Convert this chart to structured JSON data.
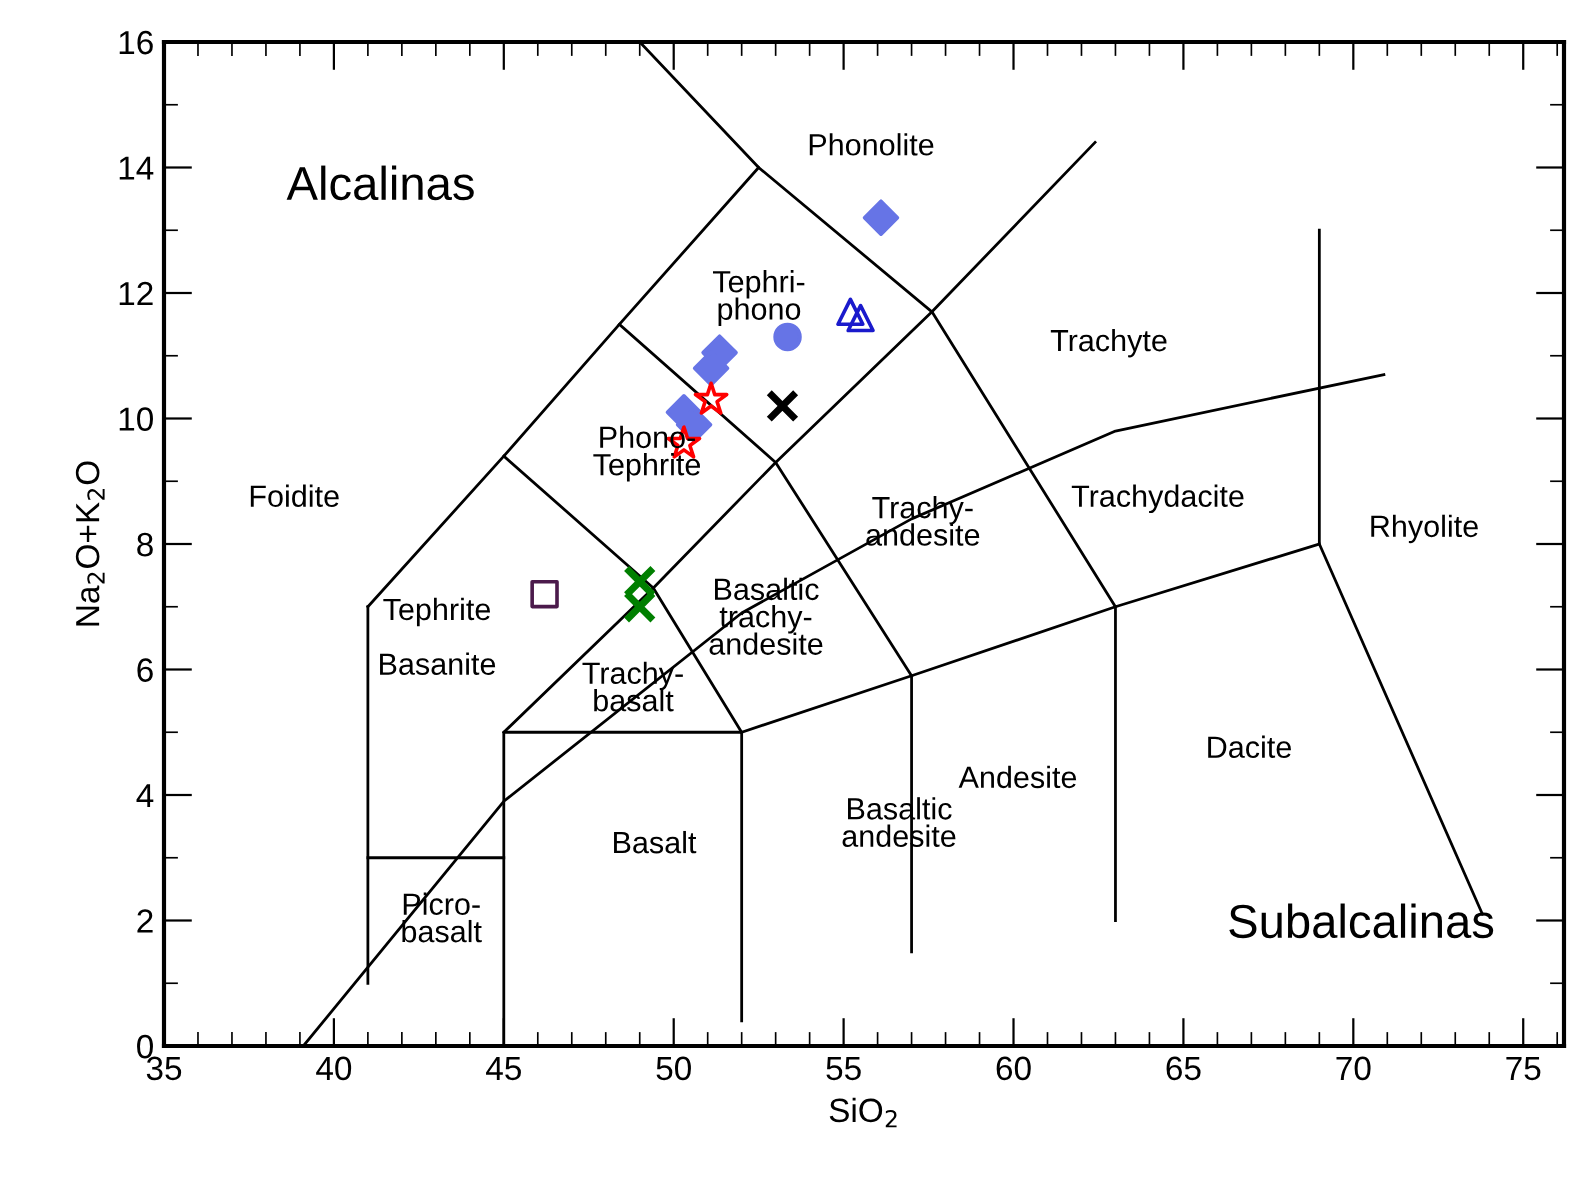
{
  "chart_data": {
    "type": "scatter",
    "xlabel": "SiO$_{2}$",
    "ylabel": "Na$_{2}$O+K$_{2}$O",
    "xlim": [
      35,
      76.2
    ],
    "ylim": [
      0,
      16
    ],
    "xticks": [
      35,
      40,
      45,
      50,
      55,
      60,
      65,
      70,
      75
    ],
    "yticks": [
      0,
      2,
      4,
      6,
      8,
      10,
      12,
      14,
      16
    ],
    "grid": false,
    "legend": false,
    "series": [
      {
        "type": "line",
        "color": "#000000",
        "marker": "none",
        "x": [
          41,
          41
        ],
        "values": [
          1,
          7
        ]
      },
      {
        "type": "line",
        "color": "#000000",
        "marker": "none",
        "x": [
          41,
          45
        ],
        "values": [
          3,
          3
        ]
      },
      {
        "type": "line",
        "color": "#000000",
        "marker": "none",
        "x": [
          45,
          45,
          52,
          52
        ],
        "values": [
          0,
          5,
          5,
          0.4
        ]
      },
      {
        "type": "line",
        "color": "#000000",
        "marker": "none",
        "x": [
          52,
          57,
          63,
          69
        ],
        "values": [
          5,
          5.9,
          7,
          8
        ]
      },
      {
        "type": "line",
        "color": "#000000",
        "marker": "none",
        "x": [
          57,
          57
        ],
        "values": [
          1.5,
          5.9
        ]
      },
      {
        "type": "line",
        "color": "#000000",
        "marker": "none",
        "x": [
          63,
          63
        ],
        "values": [
          2,
          7
        ]
      },
      {
        "type": "line",
        "color": "#000000",
        "marker": "none",
        "x": [
          69,
          69,
          73.8
        ],
        "values": [
          13,
          8,
          2.1
        ]
      },
      {
        "type": "line",
        "color": "#000000",
        "marker": "none",
        "x": [
          45,
          49.4,
          53,
          57.6,
          62.4
        ],
        "values": [
          5,
          7.3,
          9.3,
          11.7,
          14.4
        ]
      },
      {
        "type": "line",
        "color": "#000000",
        "marker": "none",
        "x": [
          41,
          45,
          48.4,
          52.5,
          49
        ],
        "values": [
          7,
          9.4,
          11.5,
          14,
          16
        ]
      },
      {
        "type": "line",
        "color": "#000000",
        "marker": "none",
        "x": [
          45,
          49.4,
          52
        ],
        "values": [
          9.4,
          7.3,
          5
        ]
      },
      {
        "type": "line",
        "color": "#000000",
        "marker": "none",
        "x": [
          48.4,
          53,
          57
        ],
        "values": [
          11.5,
          9.3,
          5.9
        ]
      },
      {
        "type": "line",
        "color": "#000000",
        "marker": "none",
        "x": [
          52.5,
          57.6,
          63
        ],
        "values": [
          14,
          11.7,
          7
        ]
      },
      {
        "type": "line",
        "color": "#000000",
        "marker": "none",
        "x": [
          39.1,
          45,
          52,
          57,
          63,
          70.9
        ],
        "values": [
          0,
          3.9,
          6.9,
          8.4,
          9.8,
          10.7
        ]
      },
      {
        "color": "#6674e6",
        "marker": "diamond",
        "x": [
          56.1,
          51.35,
          51.1,
          50.3,
          50.6
        ],
        "values": [
          13.2,
          11.05,
          10.8,
          10.1,
          9.9
        ]
      },
      {
        "color": "#6674e6",
        "marker": "circle",
        "x": [
          53.35
        ],
        "values": [
          11.3
        ]
      },
      {
        "color": "#1a1acc",
        "marker": "triangle",
        "x": [
          55.5,
          55.2
        ],
        "values": [
          11.6,
          11.7
        ]
      },
      {
        "color": "#ff0000",
        "marker": "star",
        "x": [
          51.1,
          50.3
        ],
        "values": [
          10.3,
          9.6
        ]
      },
      {
        "color": "#000000",
        "marker": "cross",
        "x": [
          53.2
        ],
        "values": [
          10.2
        ]
      },
      {
        "color": "#4b1a4b",
        "marker": "square",
        "x": [
          46.2
        ],
        "values": [
          7.2
        ]
      },
      {
        "color": "#007f00",
        "marker": "cross",
        "x": [
          49.0,
          49.0
        ],
        "values": [
          7.4,
          7.0
        ]
      }
    ],
    "annotations": [
      "Alcalinas",
      "Phonolite",
      "Tephri-\nphono",
      "Trachyte",
      "Phono-\nTephrite",
      "Foidite",
      "Trachy-\nandesite",
      "Trachydacite",
      "Rhyolite",
      "Tephrite\n\nBasanite",
      "Trachy-\nbasalt",
      "Basaltic\ntrachy-\nandesite",
      "Andesite",
      "Dacite",
      "Basaltic\nandesite",
      "Basalt",
      "Picro-\nbasalt",
      "Subalcalinas"
    ]
  }
}
